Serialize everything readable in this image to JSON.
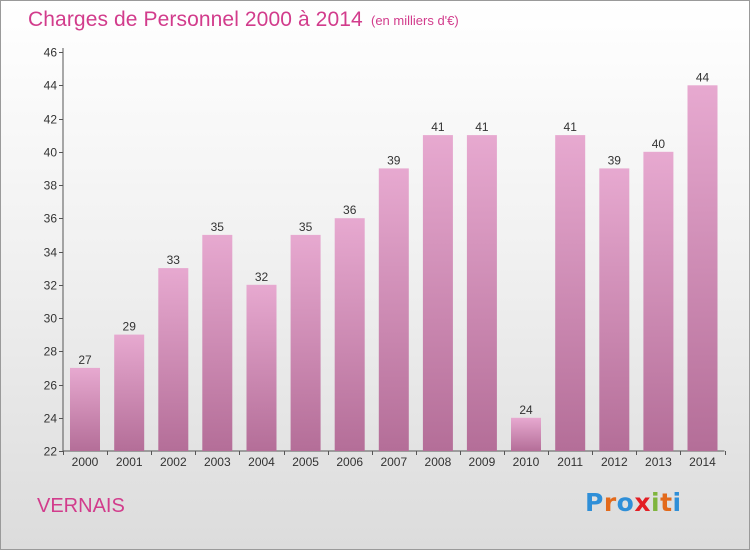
{
  "header": {
    "title": "Charges de Personnel 2000 à 2014",
    "unit_note": "(en milliers d'€)"
  },
  "footer": {
    "place": "VERNAIS",
    "logo_text": "Proxiti"
  },
  "colors": {
    "title": "#d23c8c",
    "bar_top": "#e7a9d0",
    "bar_bottom": "#b46e98",
    "logo_letters": [
      "#2f8fd8",
      "#e36a1b",
      "#2f8fd8",
      "#e31e24",
      "#7fb53d",
      "#e36a1b",
      "#2f8fd8"
    ]
  },
  "chart_data": {
    "type": "bar",
    "categories": [
      "2000",
      "2001",
      "2002",
      "2003",
      "2004",
      "2005",
      "2006",
      "2007",
      "2008",
      "2009",
      "2010",
      "2011",
      "2012",
      "2013",
      "2014"
    ],
    "values": [
      27,
      29,
      33,
      35,
      32,
      35,
      36,
      39,
      41,
      41,
      24,
      41,
      39,
      40,
      44
    ],
    "title": "Charges de Personnel 2000 à 2014",
    "xlabel": "",
    "ylabel": "",
    "ylim": [
      22,
      46
    ],
    "yticks": [
      22,
      24,
      26,
      28,
      30,
      32,
      34,
      36,
      38,
      40,
      42,
      44,
      46
    ],
    "grid": false,
    "data_labels": true
  }
}
